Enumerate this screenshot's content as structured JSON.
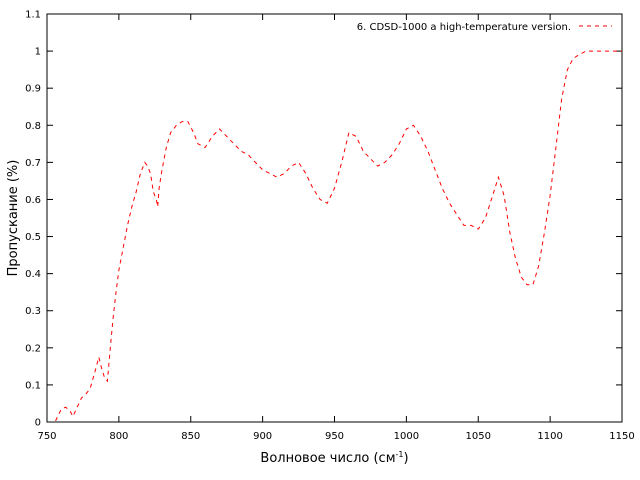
{
  "chart_data": {
    "type": "line",
    "title": "",
    "xlabel": "Волновое число (см",
    "xlabel_sup": "-1",
    "xlabel_close": ")",
    "ylabel": "Пропускание (%)",
    "xlim": [
      750,
      1150
    ],
    "ylim": [
      0,
      1.1
    ],
    "x_ticks": [
      750,
      800,
      850,
      900,
      950,
      1000,
      1050,
      1100,
      1150
    ],
    "x_tick_labels": [
      "750",
      "800",
      "850",
      "900",
      "950",
      "1000",
      "1050",
      "1100",
      "1150"
    ],
    "y_ticks": [
      0,
      0.1,
      0.2,
      0.3,
      0.4,
      0.5,
      0.6,
      0.7,
      0.8,
      0.9,
      1,
      1.1
    ],
    "y_tick_labels": [
      "0",
      "0.1",
      "0.2",
      "0.3",
      "0.4",
      "0.5",
      "0.6",
      "0.7",
      "0.8",
      "0.9",
      "1",
      "1.1"
    ],
    "grid": false,
    "legend_position": "top-right",
    "series": [
      {
        "name": "6. CDSD-1000 a high-temperature version.",
        "color": "#ff0000",
        "dash": "dashed",
        "x": [
          756,
          758,
          760,
          763,
          766,
          768,
          771,
          774,
          777,
          780,
          783,
          786,
          788,
          790,
          792,
          794,
          796,
          798,
          800,
          803,
          806,
          809,
          812,
          815,
          818,
          820,
          822,
          824,
          826,
          827,
          828,
          830,
          833,
          836,
          840,
          844,
          848,
          852,
          855,
          860,
          865,
          870,
          875,
          880,
          885,
          890,
          895,
          900,
          905,
          910,
          915,
          920,
          925,
          930,
          935,
          940,
          945,
          950,
          955,
          960,
          965,
          970,
          975,
          980,
          985,
          990,
          995,
          1000,
          1005,
          1010,
          1015,
          1020,
          1025,
          1030,
          1035,
          1040,
          1045,
          1050,
          1055,
          1060,
          1064,
          1068,
          1072,
          1076,
          1080,
          1084,
          1088,
          1092,
          1096,
          1100,
          1104,
          1108,
          1112,
          1116,
          1120,
          1125,
          1130,
          1135,
          1140,
          1145,
          1150
        ],
        "y": [
          0.003,
          0.02,
          0.035,
          0.04,
          0.03,
          0.015,
          0.04,
          0.065,
          0.075,
          0.09,
          0.13,
          0.175,
          0.145,
          0.12,
          0.11,
          0.2,
          0.28,
          0.35,
          0.41,
          0.47,
          0.53,
          0.58,
          0.62,
          0.67,
          0.7,
          0.69,
          0.67,
          0.62,
          0.6,
          0.58,
          0.63,
          0.68,
          0.74,
          0.78,
          0.8,
          0.81,
          0.81,
          0.78,
          0.75,
          0.74,
          0.77,
          0.79,
          0.77,
          0.75,
          0.73,
          0.72,
          0.7,
          0.68,
          0.67,
          0.66,
          0.67,
          0.69,
          0.7,
          0.67,
          0.63,
          0.6,
          0.59,
          0.63,
          0.7,
          0.78,
          0.77,
          0.73,
          0.71,
          0.69,
          0.7,
          0.72,
          0.75,
          0.79,
          0.8,
          0.77,
          0.73,
          0.68,
          0.63,
          0.59,
          0.56,
          0.53,
          0.53,
          0.52,
          0.55,
          0.61,
          0.66,
          0.61,
          0.51,
          0.44,
          0.39,
          0.37,
          0.37,
          0.42,
          0.51,
          0.61,
          0.74,
          0.87,
          0.95,
          0.98,
          0.99,
          1.0,
          1.0,
          1.0,
          1.0,
          1.0,
          1.0
        ]
      }
    ]
  }
}
